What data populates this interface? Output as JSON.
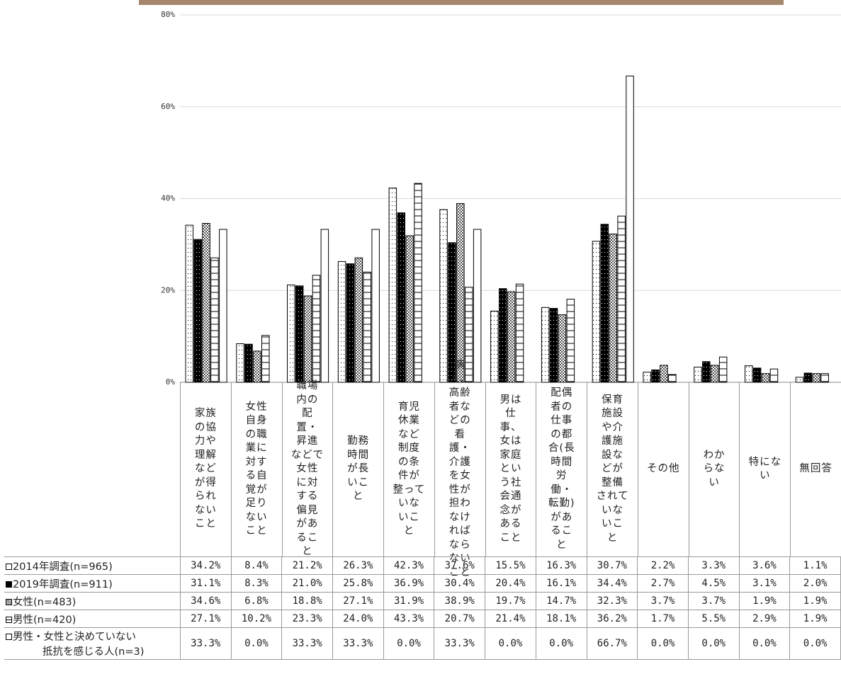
{
  "chart_data": {
    "type": "bar",
    "ylim": [
      0,
      80
    ],
    "yticks": [
      "80%",
      "60%",
      "40%",
      "20%",
      "0%"
    ],
    "ytick_values": [
      80,
      60,
      40,
      20,
      0
    ],
    "grid": true,
    "legend": "table-left",
    "categories": [
      "家族の協力や理解などが得られないこと",
      "女性自身の職業に対する自覚が足りないこと",
      "職場内の配置・昇進などで女性に対する偏見があること",
      "勤務時間が長いこと",
      "育児休業など制度の条件が整っていないこと",
      "病人、高齢者などの看護・介護を女性が担わなければならないこと",
      "男は仕事、女は家庭という社会通念があること",
      "配偶者の仕事の都合(長時間労働・転勤)があること",
      "保育施設や介護施設などが整備されていないこと",
      "その他",
      "わからない",
      "特にない",
      "無回答"
    ],
    "series": [
      {
        "name": "2014年調査(n=965)",
        "pattern": "dots-white",
        "values": [
          34.2,
          8.4,
          21.2,
          26.3,
          42.3,
          37.6,
          15.5,
          16.3,
          30.7,
          2.2,
          3.3,
          3.6,
          1.1
        ],
        "labels": [
          "34.2%",
          "8.4%",
          "21.2%",
          "26.3%",
          "42.3%",
          "37.6%",
          "15.5%",
          "16.3%",
          "30.7%",
          "2.2%",
          "3.3%",
          "3.6%",
          "1.1%"
        ]
      },
      {
        "name": "2019年調査(n=911)",
        "pattern": "dots-black",
        "values": [
          31.1,
          8.3,
          21.0,
          25.8,
          36.9,
          30.4,
          20.4,
          16.1,
          34.4,
          2.7,
          4.5,
          3.1,
          2.0
        ],
        "labels": [
          "31.1%",
          "8.3%",
          "21.0%",
          "25.8%",
          "36.9%",
          "30.4%",
          "20.4%",
          "16.1%",
          "34.4%",
          "2.7%",
          "4.5%",
          "3.1%",
          "2.0%"
        ]
      },
      {
        "name": "女性(n=483)",
        "pattern": "checker",
        "values": [
          34.6,
          6.8,
          18.8,
          27.1,
          31.9,
          38.9,
          19.7,
          14.7,
          32.3,
          3.7,
          3.7,
          1.9,
          1.9
        ],
        "labels": [
          "34.6%",
          "6.8%",
          "18.8%",
          "27.1%",
          "31.9%",
          "38.9%",
          "19.7%",
          "14.7%",
          "32.3%",
          "3.7%",
          "3.7%",
          "1.9%",
          "1.9%"
        ]
      },
      {
        "name": "男性(n=420)",
        "pattern": "ladder",
        "values": [
          27.1,
          10.2,
          23.3,
          24.0,
          43.3,
          20.7,
          21.4,
          18.1,
          36.2,
          1.7,
          5.5,
          2.9,
          1.9
        ],
        "labels": [
          "27.1%",
          "10.2%",
          "23.3%",
          "24.0%",
          "43.3%",
          "20.7%",
          "21.4%",
          "18.1%",
          "36.2%",
          "1.7%",
          "5.5%",
          "2.9%",
          "1.9%"
        ]
      },
      {
        "name": "男性・女性と決めていない 抵抗を感じる人(n=3)",
        "pattern": "white",
        "name_line1": "男性・女性と決めていない",
        "name_line2": "抵抗を感じる人(n=3)",
        "values": [
          33.3,
          0.0,
          33.3,
          33.3,
          0.0,
          33.3,
          0.0,
          0.0,
          66.7,
          0.0,
          0.0,
          0.0,
          0.0
        ],
        "labels": [
          "33.3%",
          "0.0%",
          "33.3%",
          "33.3%",
          "0.0%",
          "33.3%",
          "0.0%",
          "0.0%",
          "66.7%",
          "0.0%",
          "0.0%",
          "0.0%",
          "0.0%"
        ]
      }
    ]
  },
  "colors": {
    "top_band": "#a5876c",
    "grid": "#d9d9d9",
    "bar_stroke": "#000000"
  }
}
